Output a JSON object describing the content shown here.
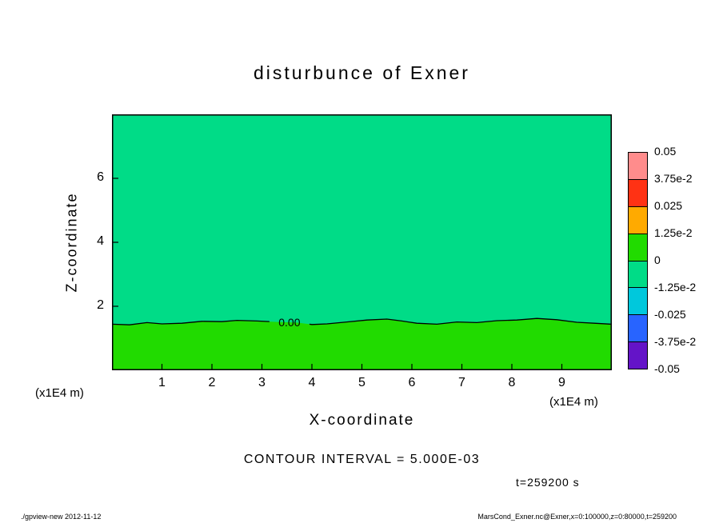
{
  "title": "disturbunce of Exner",
  "x_axis": {
    "label": "X-coordinate",
    "unit": "(x1E4 m)"
  },
  "y_axis": {
    "label": "Z-coordinate"
  },
  "caption": "CONTOUR INTERVAL = 5.000E-03",
  "time_label": "t=259200 s",
  "footer": {
    "left": "./gpview-new  2012-11-12",
    "right": "MarsCond_Exner.nc@Exner,x=0:100000,z=0:80000,t=259200"
  },
  "chart_data": {
    "type": "contour",
    "title": "disturbunce of Exner",
    "xlabel": "X-coordinate",
    "ylabel": "Z-coordinate",
    "axis_unit": "(x1E4 m)",
    "xlim": [
      0,
      10
    ],
    "ylim": [
      0,
      8
    ],
    "x_ticks": [
      1,
      2,
      3,
      4,
      5,
      6,
      7,
      8,
      9
    ],
    "y_ticks": [
      2,
      4,
      6
    ],
    "grid": false,
    "contour_interval": 0.005,
    "contour_label": "0.00",
    "contour_label_x_range": [
      3.15,
      3.95
    ],
    "time": "t=259200 s",
    "fill": {
      "above": "#00DC87",
      "below": "#21DB00"
    },
    "zero_contour_points": [
      [
        0,
        1.44
      ],
      [
        0.35,
        1.42
      ],
      [
        0.7,
        1.49
      ],
      [
        1.0,
        1.45
      ],
      [
        1.4,
        1.47
      ],
      [
        1.8,
        1.53
      ],
      [
        2.2,
        1.52
      ],
      [
        2.5,
        1.56
      ],
      [
        2.9,
        1.54
      ],
      [
        3.3,
        1.51
      ],
      [
        3.7,
        1.49
      ],
      [
        4.0,
        1.43
      ],
      [
        4.3,
        1.45
      ],
      [
        4.7,
        1.51
      ],
      [
        5.1,
        1.57
      ],
      [
        5.5,
        1.6
      ],
      [
        5.8,
        1.54
      ],
      [
        6.1,
        1.47
      ],
      [
        6.5,
        1.44
      ],
      [
        6.9,
        1.51
      ],
      [
        7.3,
        1.49
      ],
      [
        7.7,
        1.55
      ],
      [
        8.1,
        1.57
      ],
      [
        8.5,
        1.62
      ],
      [
        8.9,
        1.58
      ],
      [
        9.3,
        1.5
      ],
      [
        9.65,
        1.47
      ],
      [
        10,
        1.44
      ]
    ],
    "colorbar": {
      "position": "right",
      "tick_labels": [
        "0.05",
        "3.75e-2",
        "0.025",
        "1.25e-2",
        "0",
        "-1.25e-2",
        "-0.025",
        "-3.75e-2",
        "-0.05"
      ],
      "segment_colors": [
        "#FF8C8C",
        "#FF3214",
        "#FFAA00",
        "#21DB00",
        "#00DC87",
        "#00C8DC",
        "#2864FF",
        "#6414C8"
      ],
      "segment_value_ranges": [
        [
          0.0375,
          0.05
        ],
        [
          0.025,
          0.0375
        ],
        [
          0.0125,
          0.025
        ],
        [
          0,
          0.0125
        ],
        [
          -0.0125,
          0
        ],
        [
          -0.025,
          -0.0125
        ],
        [
          -0.0375,
          -0.025
        ],
        [
          -0.05,
          -0.0375
        ]
      ]
    }
  }
}
